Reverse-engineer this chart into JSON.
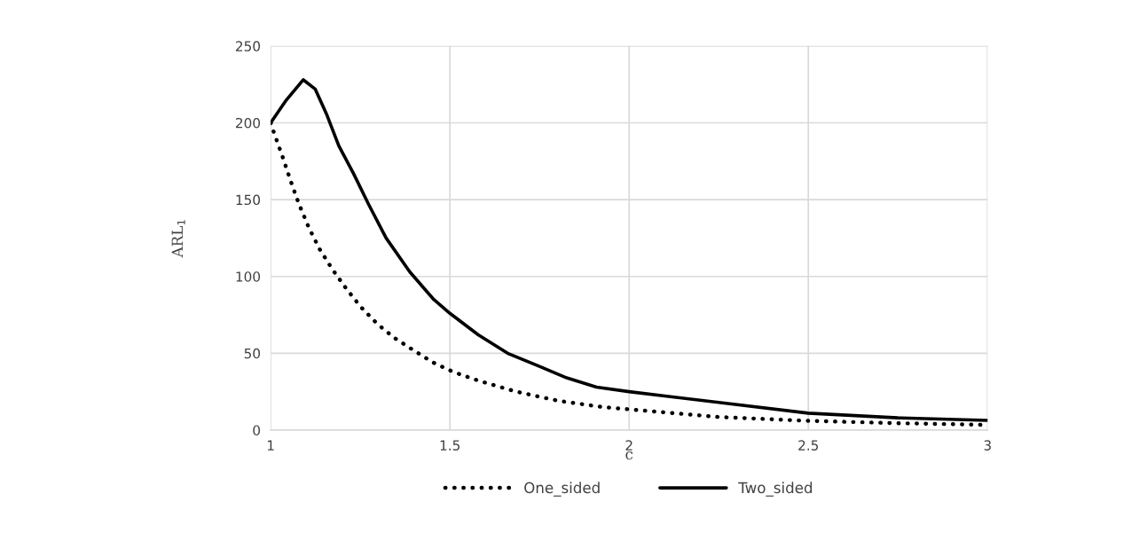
{
  "chart_data": {
    "type": "line",
    "xlabel": "c",
    "ylabel": "ARL$_{1}$",
    "xlim": [
      1,
      3
    ],
    "xticks": [
      1,
      1.5,
      2,
      2.5,
      3
    ],
    "ylim": [
      0,
      250
    ],
    "yticks": [
      0,
      50,
      100,
      150,
      200,
      250
    ],
    "grid": true,
    "legend": "bottom",
    "series": [
      {
        "name": "One_sided",
        "color": "#000000",
        "line_style": "dotted",
        "x": [
          1,
          1.01,
          1.033,
          1.056,
          1.079,
          1.106,
          1.136,
          1.171,
          1.211,
          1.252,
          1.298,
          1.345,
          1.398,
          1.453,
          1.508,
          1.569,
          1.626,
          1.686,
          1.744,
          1.804,
          1.865,
          1.926,
          2,
          2.25,
          2.5,
          2.75,
          3
        ],
        "values": [
          200,
          193,
          178,
          162,
          147,
          132,
          118,
          105,
          92,
          80,
          69,
          60,
          52,
          44,
          38,
          33,
          29,
          25,
          22,
          19,
          17,
          15,
          13.5,
          8.5,
          6,
          4.5,
          3.4
        ]
      },
      {
        "name": "Two_sided",
        "color": "#000000",
        "line_style": "solid",
        "x": [
          1,
          1.041,
          1.091,
          1.124,
          1.157,
          1.19,
          1.231,
          1.273,
          1.322,
          1.388,
          1.455,
          1.5,
          1.579,
          1.661,
          1.744,
          1.826,
          1.909,
          2,
          2.25,
          2.5,
          2.75,
          3
        ],
        "values": [
          200,
          214,
          228,
          222,
          205,
          185,
          167,
          147,
          125,
          103,
          85,
          76,
          62,
          50,
          42,
          34,
          28,
          25,
          18,
          11,
          8,
          6.3
        ]
      }
    ]
  }
}
